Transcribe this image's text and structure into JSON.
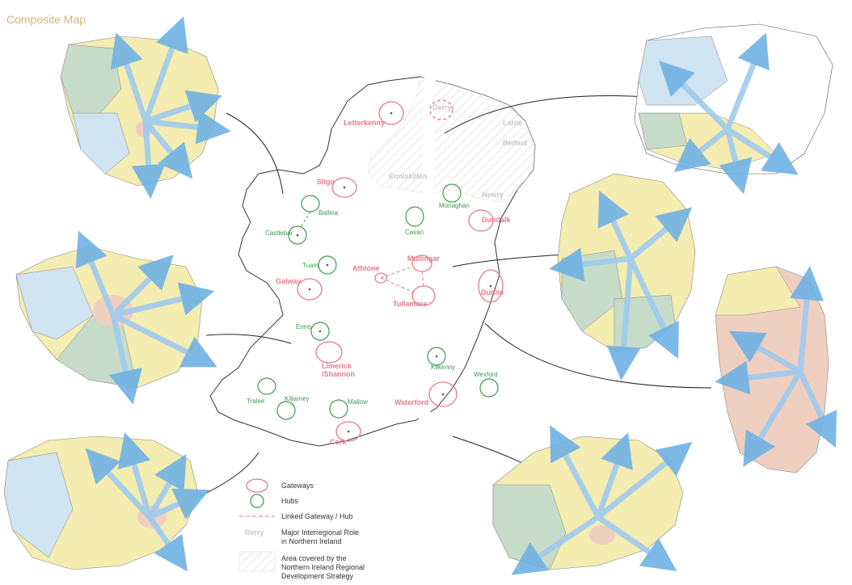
{
  "title": "Composite Map",
  "gateways": {
    "letterkenny": "Letterkenny",
    "sligo": "Sligo",
    "galway": "Galway",
    "athlone": "Athlone",
    "mullingar": "Mullingar",
    "tullamore": "Tullamore",
    "dundalk": "Dundalk",
    "dublin": "Dublin",
    "limerick": "Limerick\n/Shannon",
    "waterford": "Waterford",
    "cork": "Cork"
  },
  "hubs": {
    "ballina": "Ballina",
    "castlebar": "Castlebar",
    "tuam": "Tuam",
    "cavan": "Cavan",
    "monaghan": "Monaghan",
    "ennis": "Ennis",
    "kilkenny": "Kilkenny",
    "wexford": "Wexford",
    "tralee": "Tralee",
    "killarney": "Killarney",
    "mallow": "Mallow"
  },
  "ni_places": {
    "derry": "Derry",
    "larne": "Larne",
    "belfast": "Belfast",
    "enniskillen": "Enniskillen",
    "newry": "Newry"
  },
  "legend": {
    "gateways": "Gateways",
    "hubs": "Hubs",
    "linked": "Linked Gateway / Hub",
    "derry_sample": "Derry",
    "major_role": "Major Interregional Role\nin Northern Ireland",
    "area_covered": "Area covered by the\nNorthern Ireland Regional\nDevelopment Strategy"
  },
  "colors": {
    "gateway": "#e57a8a",
    "hub": "#3f9a4f",
    "arrow": "#8fc3ea",
    "yellow": "#f4ecb0",
    "green": "#c7dcc8",
    "blue": "#cfe3f0",
    "pink": "#efcfbf",
    "title": "#d9b07a"
  }
}
